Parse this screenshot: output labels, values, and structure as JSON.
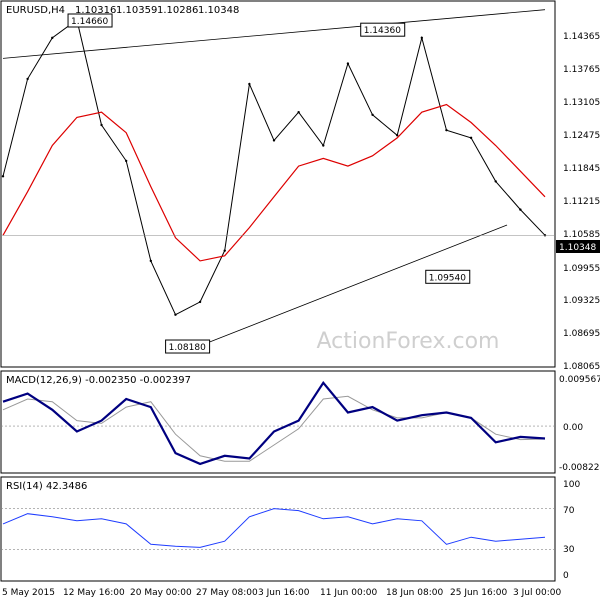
{
  "chart_data": [
    {
      "type": "ohlc",
      "panel": "price",
      "symbol": "EURUSD,H4",
      "header_values": [
        "1.10316",
        "1.10359",
        "1.10286",
        "1.10348"
      ],
      "y_ticks": [
        "1.14365",
        "1.13765",
        "1.13105",
        "1.12475",
        "1.11845",
        "1.11215",
        "1.10585",
        "1.09955",
        "1.09325",
        "1.08695",
        "1.08065"
      ],
      "ylim": [
        1.078,
        1.149
      ],
      "current_price_label": "1.10348",
      "annotations": [
        {
          "text": "1.14660",
          "value": 1.1466
        },
        {
          "text": "1.14360",
          "value": 1.1436
        },
        {
          "text": "1.09540",
          "value": 1.0954
        },
        {
          "text": "1.08180",
          "value": 1.0818
        }
      ],
      "trendlines": [
        {
          "name": "upper-trendline",
          "points": [
            [
              0.0,
              1.138
            ],
            [
              1.0,
              1.1475
            ]
          ]
        },
        {
          "name": "lower-trendline",
          "points": [
            [
              0.36,
              1.0818
            ],
            [
              0.93,
              1.1055
            ]
          ]
        }
      ],
      "moving_average_color": "#dd0000",
      "moving_average_values": [
        1.1035,
        1.112,
        1.121,
        1.1265,
        1.1275,
        1.1235,
        1.113,
        1.103,
        1.0985,
        1.0995,
        1.105,
        1.111,
        1.117,
        1.1185,
        1.117,
        1.119,
        1.1225,
        1.1275,
        1.129,
        1.1255,
        1.121,
        1.116,
        1.111
      ],
      "close_values": [
        1.115,
        1.134,
        1.142,
        1.1455,
        1.125,
        1.118,
        1.0985,
        1.088,
        1.0905,
        1.1005,
        1.133,
        1.122,
        1.1275,
        1.121,
        1.137,
        1.127,
        1.123,
        1.142,
        1.124,
        1.1225,
        1.114,
        1.1085,
        1.1035
      ]
    },
    {
      "type": "line",
      "panel": "macd",
      "label": "MACD(12,26,9) -0.002350 -0.002397",
      "y_ticks": [
        "0.009567",
        "0.00",
        "-0.008224"
      ],
      "ylim": [
        -0.0085,
        0.01
      ],
      "series": [
        {
          "values": [
            0.0045,
            0.006,
            0.003,
            -0.001,
            0.001,
            0.005,
            0.0035,
            -0.005,
            -0.007,
            -0.0055,
            -0.006,
            -0.001,
            0.001,
            0.008,
            0.0025,
            0.0035,
            0.001,
            0.002,
            0.0025,
            0.0015,
            -0.003,
            -0.002,
            -0.0023
          ]
        },
        {
          "values": [
            0.003,
            0.005,
            0.0045,
            0.001,
            0.0005,
            0.0035,
            0.0045,
            -0.0015,
            -0.0055,
            -0.0065,
            -0.0065,
            -0.0035,
            -0.0005,
            0.005,
            0.0055,
            0.003,
            0.0015,
            0.0015,
            0.0025,
            0.0015,
            -0.0015,
            -0.0025,
            -0.0024
          ]
        }
      ]
    },
    {
      "type": "line",
      "panel": "rsi",
      "label": "RSI(14) 42.3486",
      "y_ticks": [
        "100",
        "70",
        "30",
        "0"
      ],
      "ylim": [
        0,
        100
      ],
      "reference_levels": [
        70,
        30
      ],
      "series": [
        {
          "values": [
            55,
            65,
            62,
            58,
            60,
            55,
            35,
            33,
            32,
            38,
            62,
            70,
            68,
            60,
            62,
            55,
            60,
            58,
            35,
            42,
            38,
            40,
            42
          ]
        }
      ]
    }
  ],
  "x_axis": {
    "tick_labels": [
      "5 May 2015",
      "12 May 16:00",
      "20 May 00:00",
      "27 May 08:00",
      "3 Jun 16:00",
      "11 Jun 00:00",
      "18 Jun 08:00",
      "25 Jun 16:00",
      "3 Jul 00:00"
    ]
  },
  "watermark": "ActionForex.com",
  "colors": {
    "price_line": "#000000",
    "moving_average": "#dd0000",
    "macd_main": "#000080",
    "macd_signal": "#999999",
    "rsi": "#1e3cff",
    "current_label_bg": "#000000",
    "current_label_text": "#ffffff"
  }
}
